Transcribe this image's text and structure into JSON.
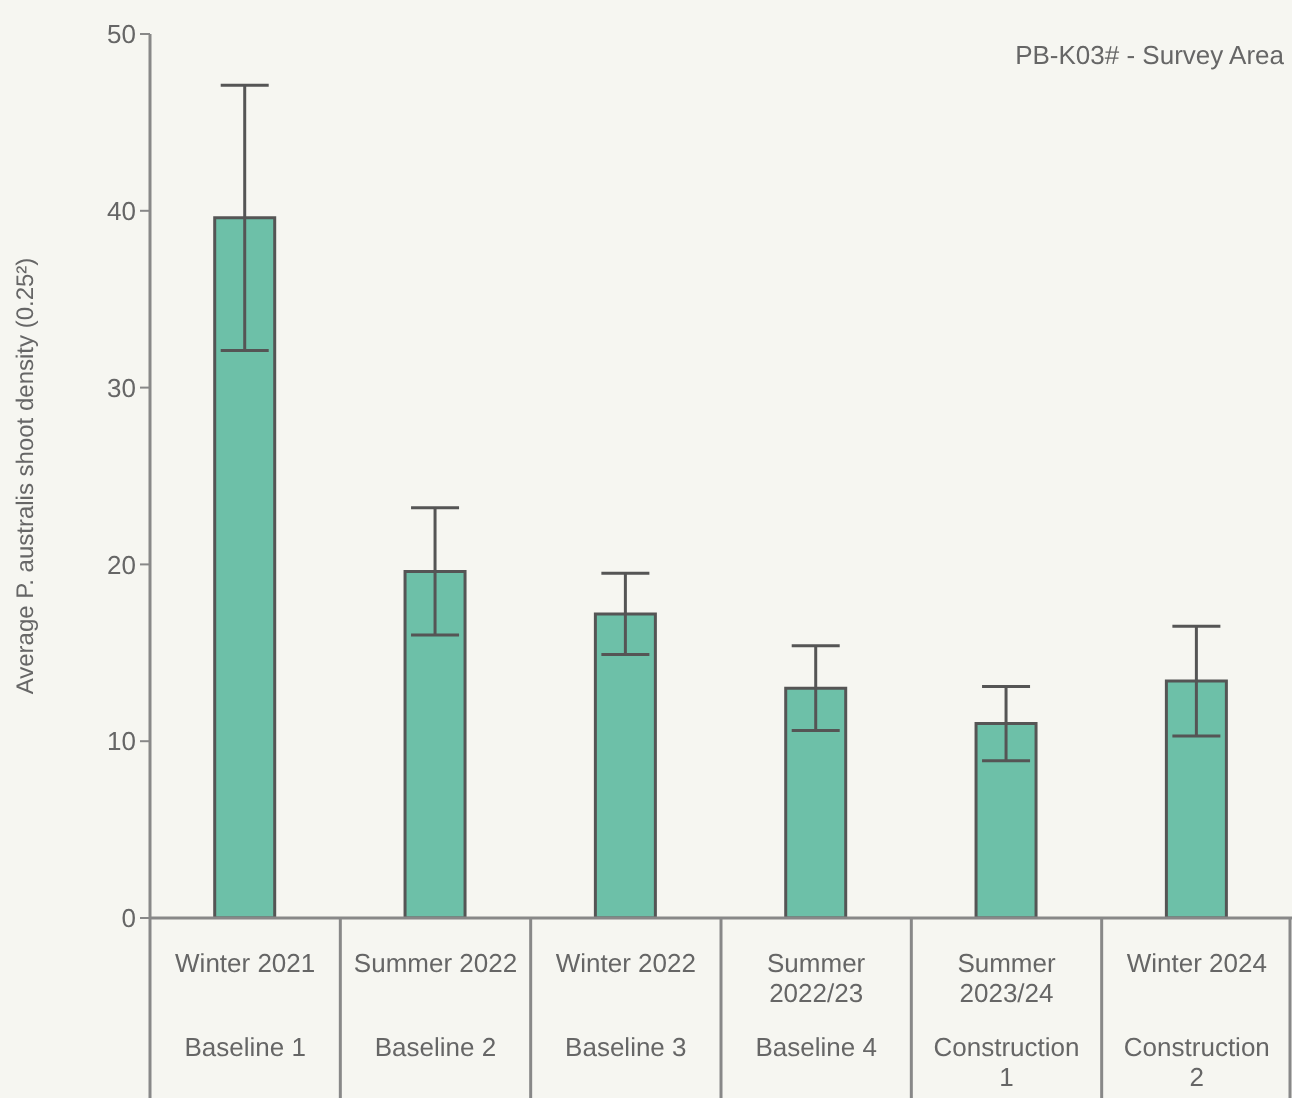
{
  "chart_data": {
    "type": "bar",
    "title": "PB-K03# - Survey Area",
    "ylabel": "Average P. australis shoot density (0.25²)",
    "categories": [
      "Winter 2021\nBaseline 1",
      "Summer 2022\nBaseline 2",
      "Winter 2022\nBaseline 3",
      "Summer 2022/23\nBaseline 4",
      "Summer 2023/24\nConstruction 1",
      "Winter 2024\nConstruction 2"
    ],
    "values": [
      39.6,
      19.6,
      17.2,
      13.0,
      11.0,
      13.4
    ],
    "errors": [
      [
        32.1,
        47.1
      ],
      [
        16.0,
        23.2
      ],
      [
        14.9,
        19.5
      ],
      [
        10.6,
        15.4
      ],
      [
        8.9,
        13.1
      ],
      [
        10.3,
        16.5
      ]
    ],
    "color": "#6dc0a8",
    "ylim": [
      0,
      50
    ],
    "yticks": [
      0,
      10,
      20,
      30,
      40,
      50
    ]
  }
}
